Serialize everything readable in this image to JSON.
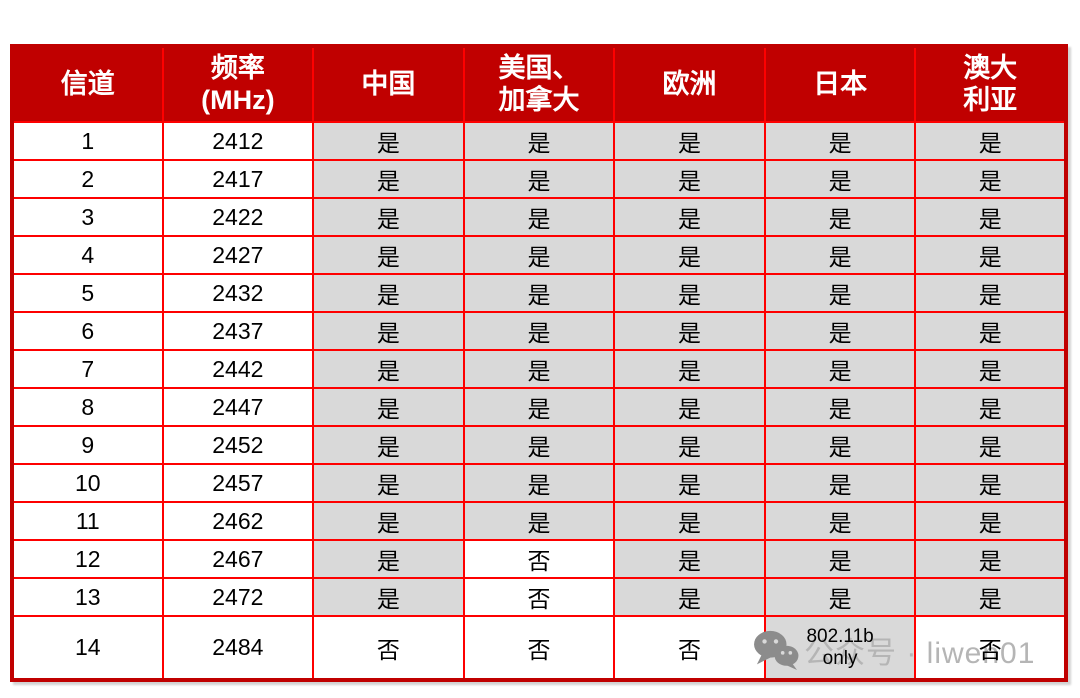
{
  "watermark": {
    "icon": "wechat-icon",
    "text": "公众号 · liwen01"
  },
  "table": {
    "headers": [
      {
        "id": "channel",
        "lines": [
          "信道"
        ]
      },
      {
        "id": "frequency",
        "lines": [
          "频率",
          "(MHz)"
        ]
      },
      {
        "id": "china",
        "lines": [
          "中国"
        ]
      },
      {
        "id": "usa-canada",
        "lines": [
          "美国、",
          "加拿大"
        ]
      },
      {
        "id": "europe",
        "lines": [
          "欧洲"
        ]
      },
      {
        "id": "japan",
        "lines": [
          "日本"
        ]
      },
      {
        "id": "australia",
        "lines": [
          "澳大",
          "利亚"
        ]
      }
    ],
    "yes_value": "是",
    "no_value": "否",
    "rows": [
      {
        "channel": "1",
        "freq_mhz": "2412",
        "regions": [
          "是",
          "是",
          "是",
          "是",
          "是"
        ]
      },
      {
        "channel": "2",
        "freq_mhz": "2417",
        "regions": [
          "是",
          "是",
          "是",
          "是",
          "是"
        ]
      },
      {
        "channel": "3",
        "freq_mhz": "2422",
        "regions": [
          "是",
          "是",
          "是",
          "是",
          "是"
        ]
      },
      {
        "channel": "4",
        "freq_mhz": "2427",
        "regions": [
          "是",
          "是",
          "是",
          "是",
          "是"
        ]
      },
      {
        "channel": "5",
        "freq_mhz": "2432",
        "regions": [
          "是",
          "是",
          "是",
          "是",
          "是"
        ]
      },
      {
        "channel": "6",
        "freq_mhz": "2437",
        "regions": [
          "是",
          "是",
          "是",
          "是",
          "是"
        ]
      },
      {
        "channel": "7",
        "freq_mhz": "2442",
        "regions": [
          "是",
          "是",
          "是",
          "是",
          "是"
        ]
      },
      {
        "channel": "8",
        "freq_mhz": "2447",
        "regions": [
          "是",
          "是",
          "是",
          "是",
          "是"
        ]
      },
      {
        "channel": "9",
        "freq_mhz": "2452",
        "regions": [
          "是",
          "是",
          "是",
          "是",
          "是"
        ]
      },
      {
        "channel": "10",
        "freq_mhz": "2457",
        "regions": [
          "是",
          "是",
          "是",
          "是",
          "是"
        ]
      },
      {
        "channel": "11",
        "freq_mhz": "2462",
        "regions": [
          "是",
          "是",
          "是",
          "是",
          "是"
        ]
      },
      {
        "channel": "12",
        "freq_mhz": "2467",
        "regions": [
          "是",
          "否",
          "是",
          "是",
          "是"
        ]
      },
      {
        "channel": "13",
        "freq_mhz": "2472",
        "regions": [
          "是",
          "否",
          "是",
          "是",
          "是"
        ]
      },
      {
        "channel": "14",
        "freq_mhz": "2484",
        "regions": [
          "否",
          "否",
          "否",
          "802.11b\nonly",
          "否"
        ]
      }
    ]
  },
  "colors": {
    "header_bg": "#c00000",
    "header_text": "#ffffff",
    "grid_border": "#fe0000",
    "outer_border": "#c00000",
    "yes_cell_bg": "#d9d9d9",
    "no_cell_bg": "#ffffff",
    "cell_text": "#000000",
    "watermark_text": "#b5b5b5",
    "watermark_icon": "#8c8c8c",
    "watermark_icon_eye": "#d9d9d9"
  }
}
